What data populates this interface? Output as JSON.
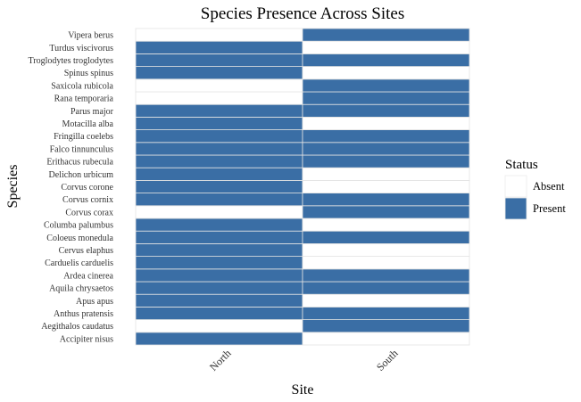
{
  "chart_data": {
    "type": "heatmap",
    "title": "Species Presence Across Sites",
    "xlabel": "Site",
    "ylabel": "Species",
    "x": [
      "North",
      "South"
    ],
    "y": [
      "Accipiter nisus",
      "Aegithalos caudatus",
      "Anthus pratensis",
      "Apus apus",
      "Aquila chrysaetos",
      "Ardea cinerea",
      "Carduelis carduelis",
      "Cervus elaphus",
      "Coloeus monedula",
      "Columba palumbus",
      "Corvus corax",
      "Corvus cornix",
      "Corvus corone",
      "Delichon urbicum",
      "Erithacus rubecula",
      "Falco tinnunculus",
      "Fringilla coelebs",
      "Motacilla alba",
      "Parus major",
      "Rana temporaria",
      "Saxicola rubicola",
      "Spinus spinus",
      "Troglodytes troglodytes",
      "Turdus viscivorus",
      "Vipera berus"
    ],
    "values": [
      [
        "Present",
        "Absent"
      ],
      [
        "Absent",
        "Present"
      ],
      [
        "Present",
        "Present"
      ],
      [
        "Present",
        "Absent"
      ],
      [
        "Present",
        "Present"
      ],
      [
        "Present",
        "Present"
      ],
      [
        "Present",
        "Absent"
      ],
      [
        "Present",
        "Absent"
      ],
      [
        "Present",
        "Present"
      ],
      [
        "Present",
        "Absent"
      ],
      [
        "Absent",
        "Present"
      ],
      [
        "Present",
        "Present"
      ],
      [
        "Present",
        "Absent"
      ],
      [
        "Present",
        "Absent"
      ],
      [
        "Present",
        "Present"
      ],
      [
        "Present",
        "Present"
      ],
      [
        "Present",
        "Present"
      ],
      [
        "Present",
        "Absent"
      ],
      [
        "Present",
        "Present"
      ],
      [
        "Absent",
        "Present"
      ],
      [
        "Absent",
        "Present"
      ],
      [
        "Present",
        "Absent"
      ],
      [
        "Present",
        "Present"
      ],
      [
        "Present",
        "Absent"
      ],
      [
        "Absent",
        "Present"
      ]
    ],
    "legend": {
      "title": "Status",
      "position": "right",
      "entries": [
        {
          "label": "Absent",
          "color": "#ffffff"
        },
        {
          "label": "Present",
          "color": "#3a6ea5"
        }
      ]
    },
    "grid": false
  }
}
